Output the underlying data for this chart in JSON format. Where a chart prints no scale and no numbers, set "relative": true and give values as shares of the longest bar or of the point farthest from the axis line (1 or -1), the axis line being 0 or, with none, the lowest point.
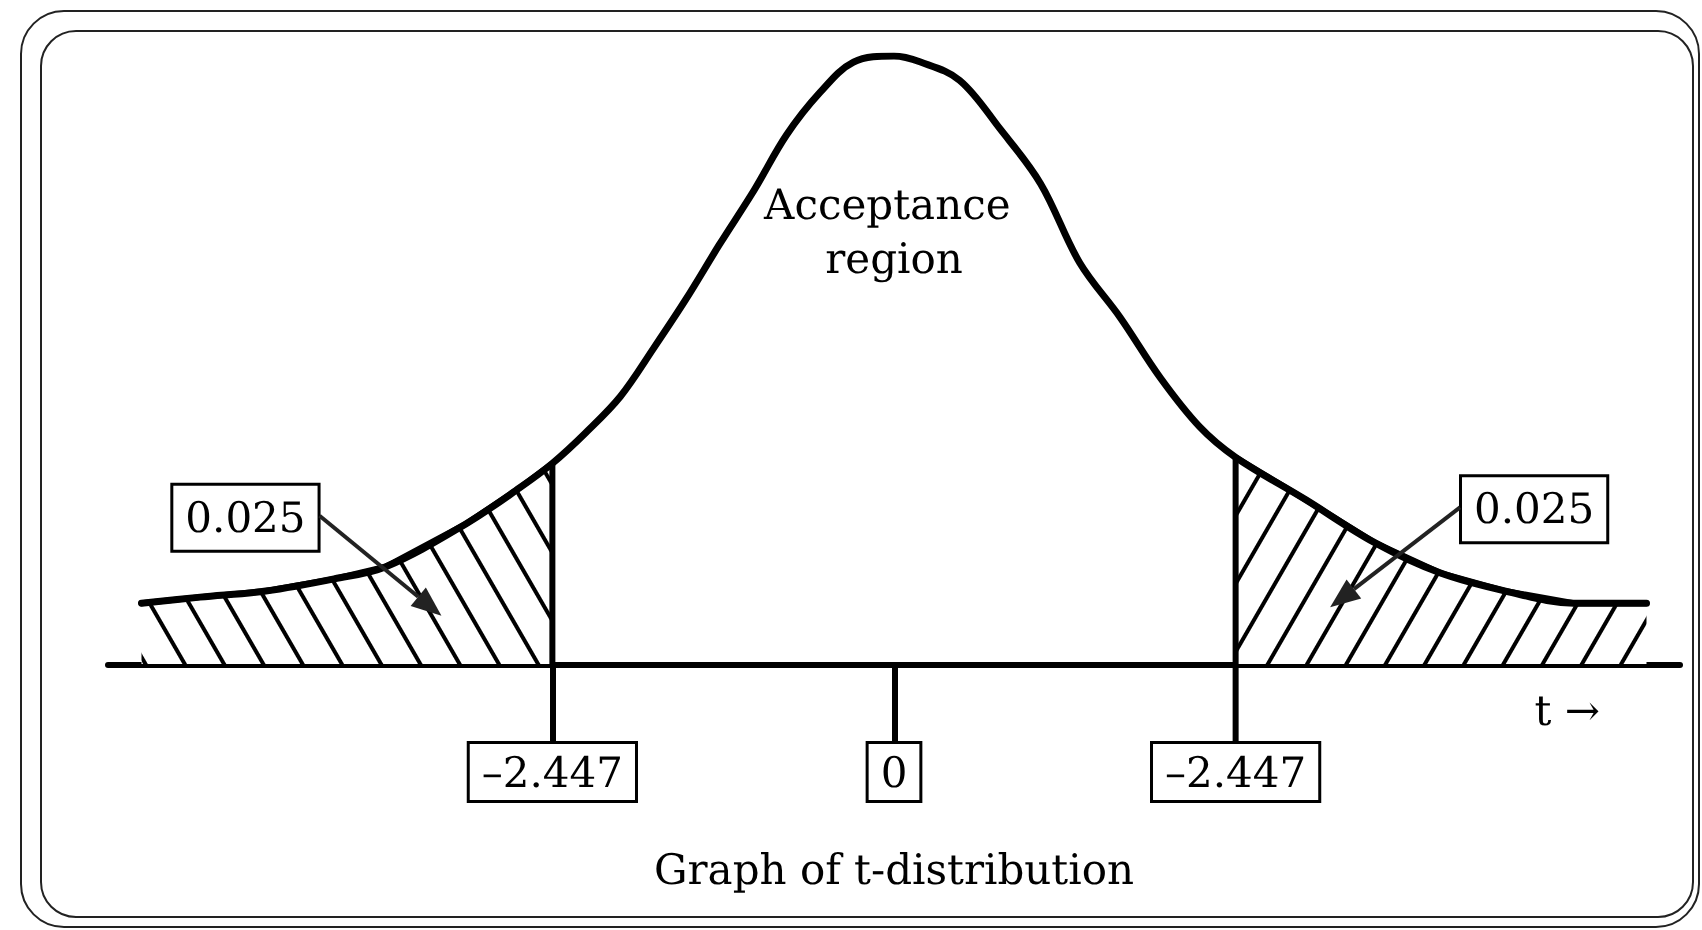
{
  "chart_data": {
    "type": "line",
    "relative": true,
    "xlabel": "t →",
    "xlim": [
      -5.63,
      5.63
    ],
    "xticks": [
      {
        "value": -2.447,
        "label": "–2.447"
      },
      0
    ],
    "series": [
      {
        "color": "#000000",
        "x": [
          -5.39,
          -4.97,
          -4.5,
          -4.01,
          -3.64,
          -3.07,
          -2.68,
          -2.447,
          -2.21,
          -1.96,
          -1.72,
          -1.49,
          -1.25,
          -1,
          -0.77,
          -0.53,
          -0.29,
          0,
          0.19,
          0.47,
          0.76,
          1.05,
          1.33,
          1.62,
          1.91,
          2.19,
          2.447,
          2.95,
          3.44,
          3.91,
          4.38,
          4.87,
          5.39
        ],
        "values": [
          0.1,
          0.11,
          0.12,
          0.14,
          0.16,
          0.23,
          0.29,
          0.33,
          0.38,
          0.44,
          0.52,
          0.6,
          0.69,
          0.78,
          0.87,
          0.94,
          0.99,
          1,
          0.99,
          0.96,
          0.88,
          0.79,
          0.66,
          0.57,
          0.47,
          0.39,
          0.34,
          0.27,
          0.2,
          0.15,
          0.12,
          0.1,
          0.1
        ]
      },
      {
        "type": "area",
        "color": "#000000",
        "x": [
          -5.39,
          -4.97,
          -4.5,
          -4.01,
          -3.64,
          -3.07,
          -2.68,
          -2.447,
          -2.447
        ],
        "values": [
          0.1,
          0.11,
          0.12,
          0.14,
          0.16,
          0.23,
          0.29,
          0.33,
          0
        ]
      },
      {
        "type": "area",
        "color": "#000000",
        "x": [
          2.447,
          2.447,
          2.95,
          3.44,
          3.91,
          4.38,
          4.87,
          5.39
        ],
        "values": [
          0,
          0.34,
          0.27,
          0.2,
          0.15,
          0.12,
          0.1,
          0.1
        ]
      }
    ],
    "annotations": [
      "Acceptance region",
      "0.025",
      "0.025",
      {
        "text": "–2.447",
        "x": 2.447,
        "y": 0
      },
      "Graph of t-distribution"
    ]
  }
}
